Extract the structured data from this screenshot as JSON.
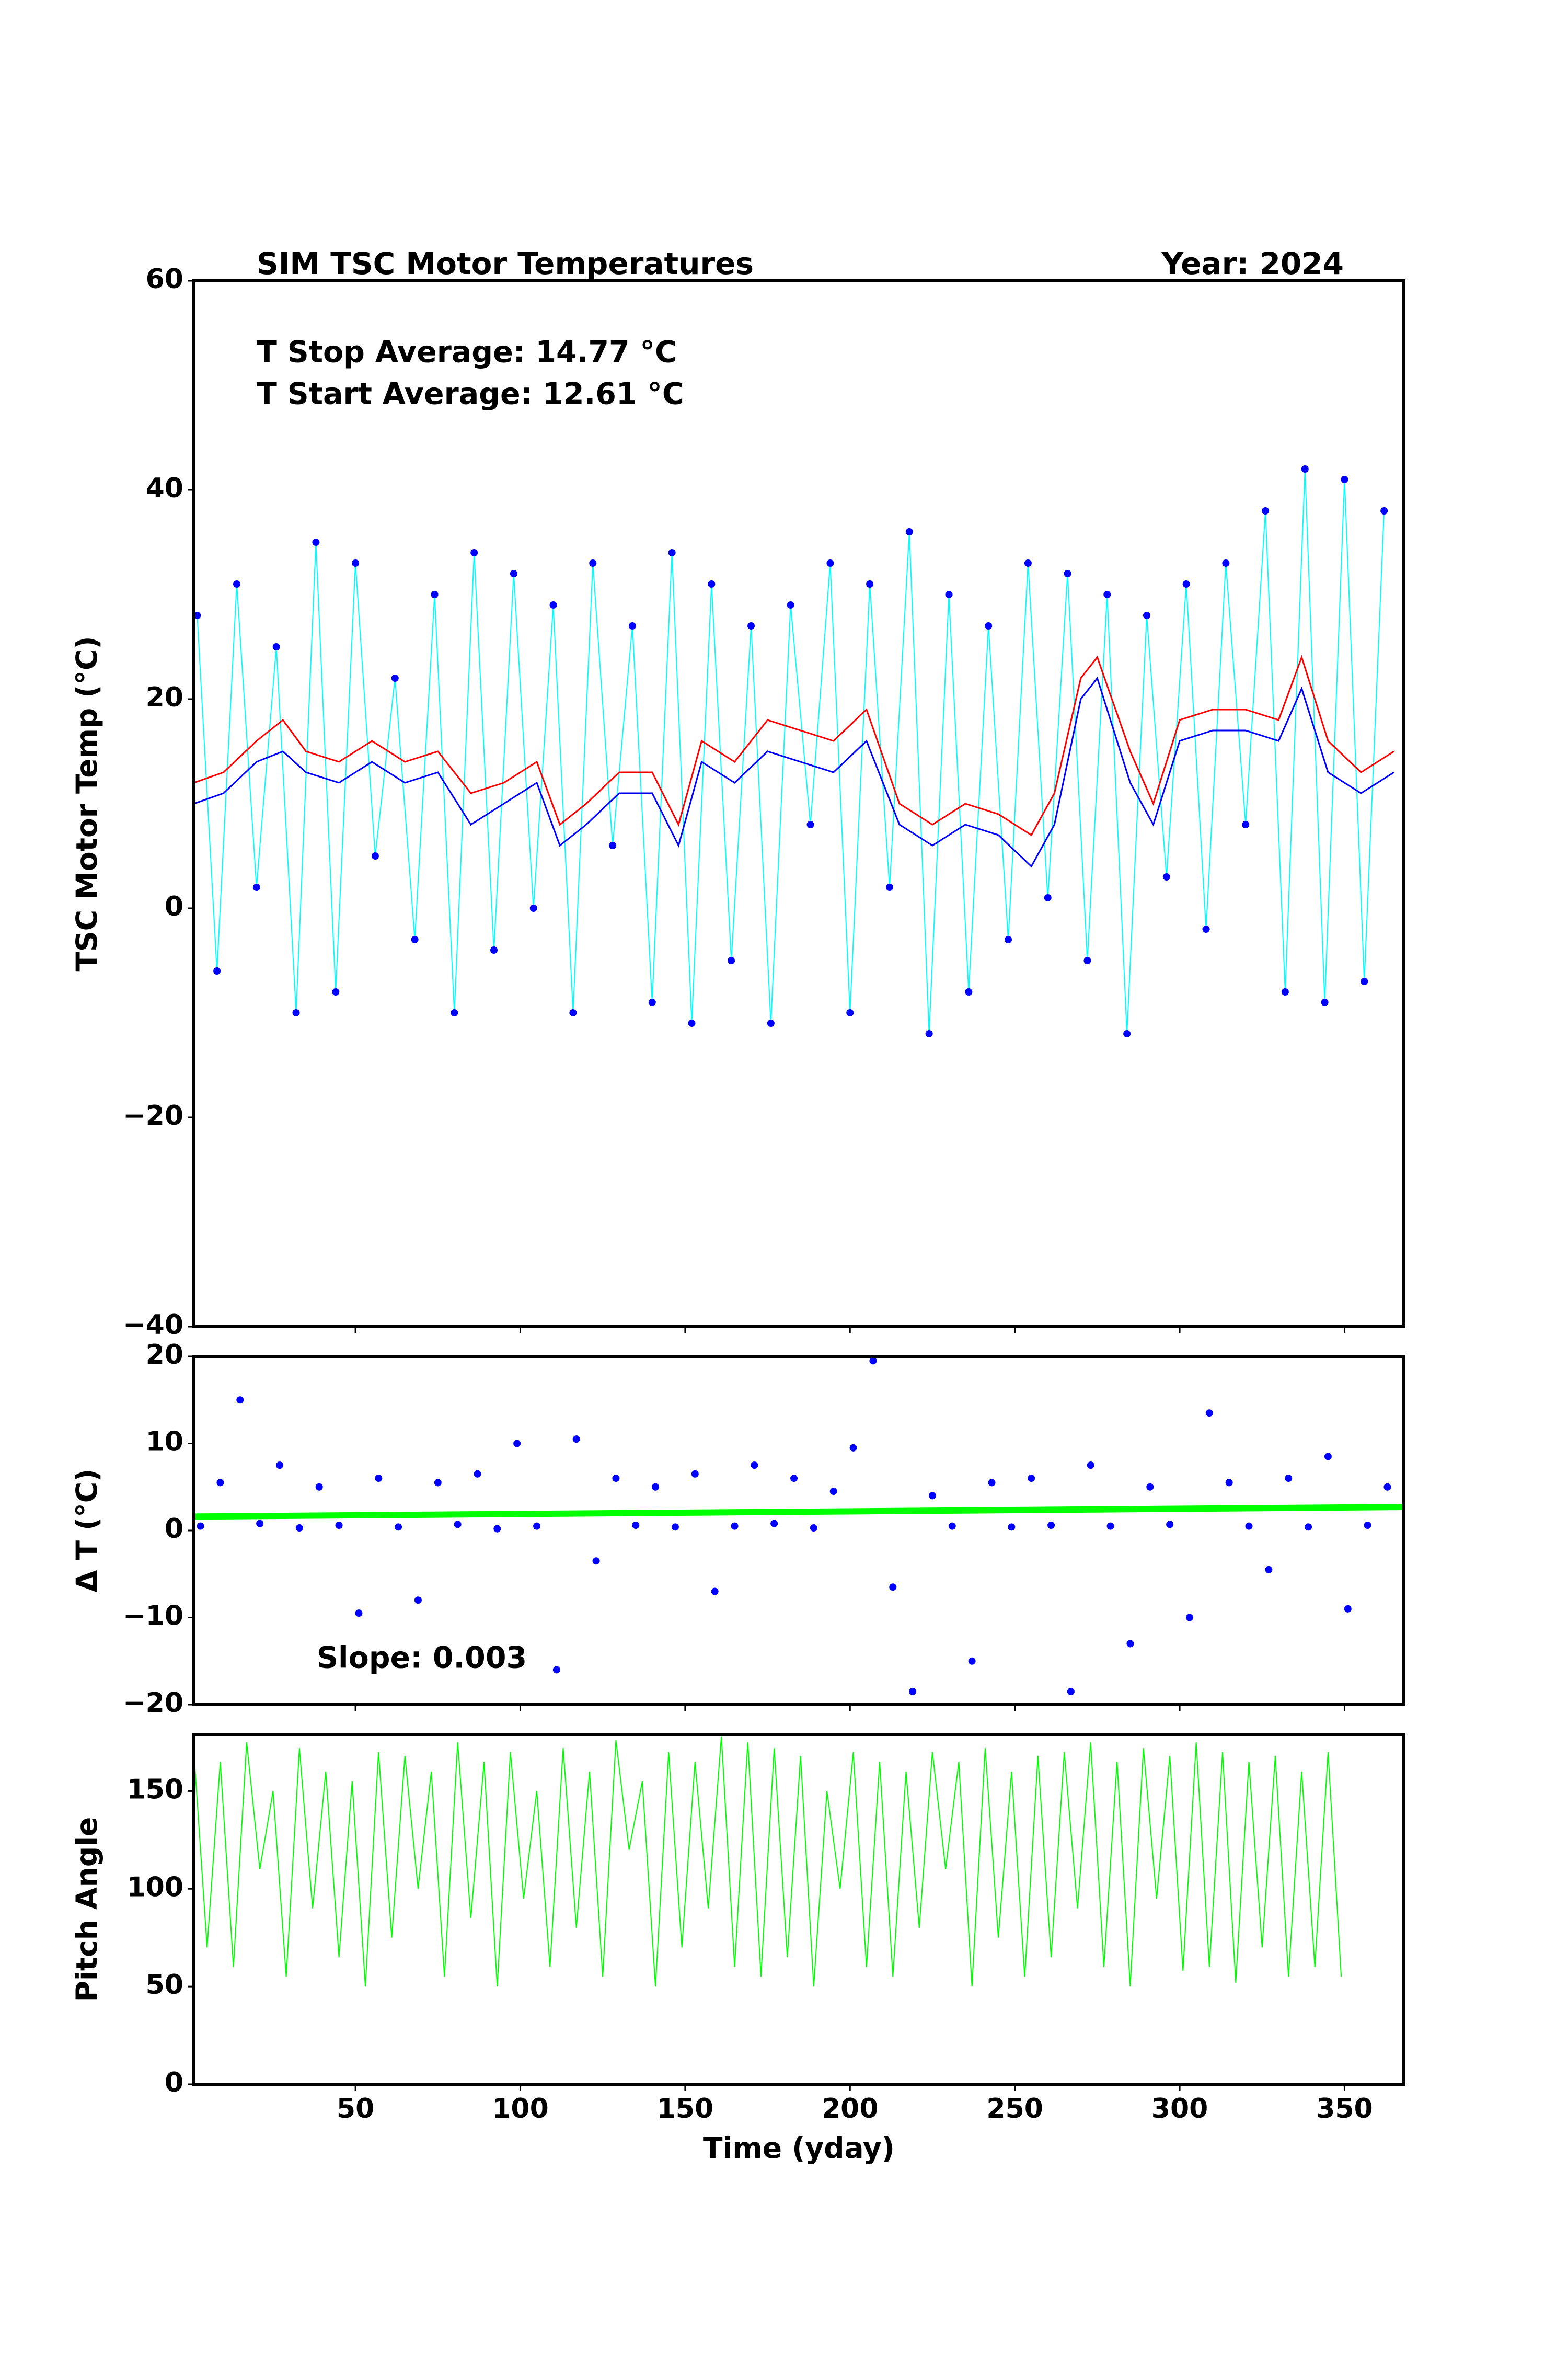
{
  "chart_data": [
    {
      "type": "line",
      "title": "SIM TSC Motor Temperatures",
      "subtitle": "Year: 2024",
      "ylabel": "TSC Motor Temp (°C)",
      "annotations": [
        {
          "text": "T Stop Average:  14.77 °C",
          "color": "#ff0000"
        },
        {
          "text": "T Start Average: 12.61 °C",
          "color": "#0000ff"
        }
      ],
      "xlim": [
        1,
        368
      ],
      "ylim": [
        -40,
        60
      ],
      "yticks": [
        {
          "value": -40,
          "label": "−40"
        },
        {
          "value": -20,
          "label": "−20"
        },
        0,
        20,
        40,
        60
      ],
      "series": [
        {
          "color": "#00ffff",
          "markers": true,
          "marker_color": "#0000ff",
          "x": [
            2,
            8,
            14,
            20,
            26,
            32,
            38,
            44,
            50,
            56,
            62,
            68,
            74,
            80,
            86,
            92,
            98,
            104,
            110,
            116,
            122,
            128,
            134,
            140,
            146,
            152,
            158,
            164,
            170,
            176,
            182,
            188,
            194,
            200,
            206,
            212,
            218,
            224,
            230,
            236,
            242,
            248,
            254,
            260,
            266,
            272,
            278,
            284,
            290,
            296,
            302,
            308,
            314,
            320,
            326,
            332,
            338,
            344,
            350,
            356,
            362
          ],
          "values": [
            28,
            -6,
            31,
            2,
            25,
            -10,
            35,
            -8,
            33,
            5,
            22,
            -3,
            30,
            -10,
            34,
            -4,
            32,
            0,
            29,
            -10,
            33,
            6,
            27,
            -9,
            34,
            -11,
            31,
            -5,
            27,
            -11,
            29,
            8,
            33,
            -10,
            31,
            2,
            36,
            -12,
            30,
            -8,
            27,
            -3,
            33,
            1,
            32,
            -5,
            30,
            -12,
            28,
            3,
            31,
            -2,
            33,
            8,
            38,
            -8,
            42,
            -9,
            41,
            -7,
            38
          ]
        },
        {
          "color": "#ff0000",
          "width": 3,
          "x": [
            1,
            10,
            20,
            28,
            35,
            45,
            55,
            65,
            75,
            85,
            95,
            105,
            112,
            120,
            130,
            140,
            148,
            155,
            165,
            175,
            185,
            195,
            205,
            215,
            225,
            235,
            245,
            255,
            262,
            270,
            275,
            285,
            292,
            300,
            310,
            320,
            330,
            337,
            345,
            355,
            365
          ],
          "values": [
            12,
            13,
            16,
            18,
            15,
            14,
            16,
            14,
            15,
            11,
            12,
            14,
            8,
            10,
            13,
            13,
            8,
            16,
            14,
            18,
            17,
            16,
            19,
            10,
            8,
            10,
            9,
            7,
            11,
            22,
            24,
            15,
            10,
            18,
            19,
            19,
            18,
            24,
            16,
            13,
            15
          ]
        },
        {
          "color": "#0000ff",
          "width": 3,
          "x": [
            1,
            10,
            20,
            28,
            35,
            45,
            55,
            65,
            75,
            85,
            95,
            105,
            112,
            120,
            130,
            140,
            148,
            155,
            165,
            175,
            185,
            195,
            205,
            215,
            225,
            235,
            245,
            255,
            262,
            270,
            275,
            285,
            292,
            300,
            310,
            320,
            330,
            337,
            345,
            355,
            365
          ],
          "values": [
            10,
            11,
            14,
            15,
            13,
            12,
            14,
            12,
            13,
            8,
            10,
            12,
            6,
            8,
            11,
            11,
            6,
            14,
            12,
            15,
            14,
            13,
            16,
            8,
            6,
            8,
            7,
            4,
            8,
            20,
            22,
            12,
            8,
            16,
            17,
            17,
            16,
            21,
            13,
            11,
            13
          ]
        }
      ]
    },
    {
      "type": "scatter",
      "ylabel": "Δ T (°C)",
      "annotations": [
        {
          "text": "Slope:  0.003",
          "color": "#000000"
        }
      ],
      "xlim": [
        1,
        368
      ],
      "ylim": [
        -20,
        20
      ],
      "yticks": [
        {
          "value": -20,
          "label": "−20"
        },
        {
          "value": -10,
          "label": "−10"
        },
        0,
        10,
        20
      ],
      "series": [
        {
          "color": "#0000ff",
          "mode": "markers",
          "x": [
            3,
            9,
            15,
            21,
            27,
            33,
            39,
            45,
            51,
            57,
            63,
            69,
            75,
            81,
            87,
            93,
            99,
            105,
            111,
            117,
            123,
            129,
            135,
            141,
            147,
            153,
            159,
            165,
            171,
            177,
            183,
            189,
            195,
            201,
            207,
            213,
            219,
            225,
            231,
            237,
            243,
            249,
            255,
            261,
            267,
            273,
            279,
            285,
            291,
            297,
            303,
            309,
            315,
            321,
            327,
            333,
            339,
            345,
            351,
            357,
            363
          ],
          "values": [
            0.5,
            5.5,
            15,
            0.8,
            7.5,
            0.3,
            5,
            0.6,
            -9.5,
            6,
            0.4,
            -8,
            5.5,
            0.7,
            6.5,
            0.2,
            10,
            0.5,
            -16,
            10.5,
            -3.5,
            6,
            0.6,
            5,
            0.4,
            6.5,
            -7,
            0.5,
            7.5,
            0.8,
            6,
            0.3,
            4.5,
            9.5,
            19.5,
            -6.5,
            -18.5,
            4,
            0.5,
            -15,
            5.5,
            0.4,
            6,
            0.6,
            -18.5,
            7.5,
            0.5,
            -13,
            5,
            0.7,
            -10,
            13.5,
            5.5,
            0.5,
            -4.5,
            6,
            0.4,
            8.5,
            -9,
            0.6,
            5
          ]
        },
        {
          "color": "#00ff00",
          "width": 12,
          "x": [
            1,
            368
          ],
          "values": [
            1.6,
            2.7
          ]
        }
      ]
    },
    {
      "type": "line",
      "ylabel": "Pitch Angle",
      "xlabel": "Time (yday)",
      "xlim": [
        1,
        368
      ],
      "ylim": [
        0,
        179
      ],
      "xticks": [
        50,
        100,
        150,
        200,
        250,
        300,
        350
      ],
      "yticks": [
        0,
        50,
        100,
        150
      ],
      "series": [
        {
          "color": "#00ff00",
          "width": 2,
          "x": [
            1,
            5,
            9,
            13,
            17,
            21,
            25,
            29,
            33,
            37,
            41,
            45,
            49,
            53,
            57,
            61,
            65,
            69,
            73,
            77,
            81,
            85,
            89,
            93,
            97,
            101,
            105,
            109,
            113,
            117,
            121,
            125,
            129,
            133,
            137,
            141,
            145,
            149,
            153,
            157,
            161,
            165,
            169,
            173,
            177,
            181,
            185,
            189,
            193,
            197,
            201,
            205,
            209,
            213,
            217,
            221,
            225,
            229,
            233,
            237,
            241,
            245,
            249,
            253,
            257,
            261,
            265,
            269,
            273,
            277,
            281,
            285,
            289,
            293,
            297,
            301,
            305,
            309,
            313,
            317,
            321,
            325,
            329,
            333,
            337,
            341,
            345,
            349
          ],
          "values": [
            170,
            70,
            165,
            60,
            175,
            110,
            150,
            55,
            172,
            90,
            160,
            65,
            155,
            50,
            170,
            75,
            168,
            100,
            160,
            55,
            175,
            85,
            165,
            50,
            170,
            95,
            150,
            60,
            172,
            80,
            160,
            55,
            176,
            120,
            155,
            50,
            170,
            70,
            165,
            90,
            178,
            60,
            175,
            55,
            172,
            65,
            168,
            50,
            150,
            100,
            170,
            60,
            165,
            55,
            160,
            80,
            170,
            110,
            165,
            50,
            172,
            75,
            160,
            55,
            168,
            65,
            170,
            90,
            175,
            60,
            165,
            50,
            172,
            95,
            168,
            58,
            175,
            60,
            170,
            52,
            165,
            70,
            168,
            55,
            160,
            60,
            170,
            55
          ]
        }
      ]
    }
  ]
}
